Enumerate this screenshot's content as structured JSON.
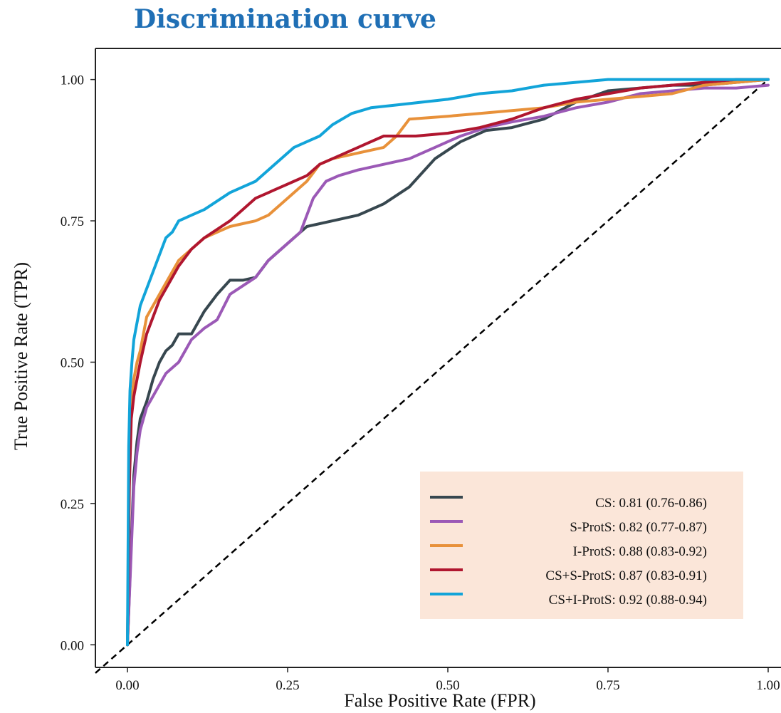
{
  "chart_data": {
    "type": "line",
    "title": "Discrimination curve",
    "xlabel": "False Positive Rate (FPR)",
    "ylabel": "True Positive Rate (TPR)",
    "xlim": [
      -0.05,
      1.02
    ],
    "ylim": [
      -0.04,
      1.055
    ],
    "x_ticks": [
      0.0,
      0.25,
      0.5,
      0.75,
      1.0
    ],
    "x_tick_labels": [
      "0.00",
      "0.25",
      "0.50",
      "0.75",
      "1.00"
    ],
    "y_ticks": [
      0.0,
      0.25,
      0.5,
      0.75,
      1.0
    ],
    "y_tick_labels": [
      "0.00",
      "0.25",
      "0.50",
      "0.75",
      "1.00"
    ],
    "grid": false,
    "legend_position": "bottom-right",
    "legend_background": "#fbe6d9",
    "reference_line": {
      "x": [
        0,
        1
      ],
      "y": [
        0,
        1
      ],
      "style": "dashed",
      "color": "#000000"
    },
    "series": [
      {
        "name": "CS: 0.81 (0.76-0.86)",
        "color": "#37474f",
        "x": [
          0,
          0.005,
          0.01,
          0.015,
          0.02,
          0.03,
          0.04,
          0.05,
          0.06,
          0.07,
          0.08,
          0.09,
          0.1,
          0.12,
          0.14,
          0.16,
          0.18,
          0.2,
          0.22,
          0.25,
          0.28,
          0.32,
          0.36,
          0.4,
          0.44,
          0.48,
          0.52,
          0.56,
          0.6,
          0.65,
          0.7,
          0.75,
          0.8,
          0.85,
          0.9,
          0.95,
          1.0
        ],
        "y": [
          0,
          0.15,
          0.3,
          0.36,
          0.4,
          0.43,
          0.47,
          0.5,
          0.52,
          0.53,
          0.55,
          0.55,
          0.55,
          0.59,
          0.62,
          0.645,
          0.645,
          0.65,
          0.68,
          0.71,
          0.74,
          0.75,
          0.76,
          0.78,
          0.81,
          0.86,
          0.89,
          0.91,
          0.915,
          0.93,
          0.96,
          0.98,
          0.985,
          0.99,
          0.99,
          0.995,
          1.0
        ]
      },
      {
        "name": "S-ProtS: 0.82 (0.77-0.87)",
        "color": "#9b59b6",
        "x": [
          0,
          0.005,
          0.01,
          0.015,
          0.02,
          0.03,
          0.04,
          0.05,
          0.06,
          0.07,
          0.08,
          0.09,
          0.1,
          0.12,
          0.14,
          0.16,
          0.18,
          0.2,
          0.22,
          0.25,
          0.27,
          0.29,
          0.31,
          0.33,
          0.36,
          0.4,
          0.44,
          0.48,
          0.52,
          0.56,
          0.6,
          0.65,
          0.7,
          0.75,
          0.8,
          0.85,
          0.9,
          0.95,
          1.0
        ],
        "y": [
          0,
          0.14,
          0.28,
          0.34,
          0.38,
          0.42,
          0.44,
          0.46,
          0.48,
          0.49,
          0.5,
          0.52,
          0.54,
          0.56,
          0.575,
          0.62,
          0.635,
          0.65,
          0.68,
          0.71,
          0.73,
          0.79,
          0.82,
          0.83,
          0.84,
          0.85,
          0.86,
          0.88,
          0.9,
          0.915,
          0.925,
          0.935,
          0.95,
          0.96,
          0.975,
          0.98,
          0.985,
          0.985,
          0.99
        ]
      },
      {
        "name": "I-ProtS: 0.88 (0.83-0.92)",
        "color": "#e8913a",
        "x": [
          0,
          0.003,
          0.006,
          0.01,
          0.015,
          0.02,
          0.025,
          0.03,
          0.04,
          0.05,
          0.06,
          0.07,
          0.08,
          0.1,
          0.12,
          0.14,
          0.16,
          0.18,
          0.2,
          0.22,
          0.24,
          0.26,
          0.28,
          0.3,
          0.32,
          0.36,
          0.4,
          0.42,
          0.44,
          0.5,
          0.55,
          0.6,
          0.65,
          0.7,
          0.75,
          0.8,
          0.85,
          0.9,
          0.95,
          1.0
        ],
        "y": [
          0,
          0.3,
          0.42,
          0.47,
          0.5,
          0.52,
          0.55,
          0.58,
          0.6,
          0.62,
          0.64,
          0.66,
          0.68,
          0.7,
          0.72,
          0.73,
          0.74,
          0.745,
          0.75,
          0.76,
          0.78,
          0.8,
          0.82,
          0.85,
          0.86,
          0.87,
          0.88,
          0.9,
          0.93,
          0.935,
          0.94,
          0.945,
          0.95,
          0.96,
          0.965,
          0.97,
          0.975,
          0.99,
          0.995,
          1.0
        ]
      },
      {
        "name": "CS+S-ProtS: 0.87 (0.83-0.91)",
        "color": "#b0162f",
        "x": [
          0,
          0.003,
          0.006,
          0.01,
          0.015,
          0.02,
          0.03,
          0.04,
          0.05,
          0.06,
          0.07,
          0.08,
          0.1,
          0.12,
          0.14,
          0.16,
          0.18,
          0.2,
          0.22,
          0.24,
          0.26,
          0.28,
          0.3,
          0.32,
          0.36,
          0.4,
          0.45,
          0.5,
          0.55,
          0.6,
          0.65,
          0.7,
          0.75,
          0.8,
          0.85,
          0.9,
          0.95,
          1.0
        ],
        "y": [
          0,
          0.28,
          0.4,
          0.44,
          0.47,
          0.5,
          0.55,
          0.58,
          0.61,
          0.63,
          0.65,
          0.67,
          0.7,
          0.72,
          0.735,
          0.75,
          0.77,
          0.79,
          0.8,
          0.81,
          0.82,
          0.83,
          0.85,
          0.86,
          0.88,
          0.9,
          0.9,
          0.905,
          0.915,
          0.93,
          0.95,
          0.965,
          0.975,
          0.985,
          0.99,
          0.995,
          1.0,
          1.0
        ]
      },
      {
        "name": "CS+I-ProtS: 0.92 (0.88-0.94)",
        "color": "#12a4d9",
        "x": [
          0,
          0.002,
          0.004,
          0.007,
          0.01,
          0.015,
          0.02,
          0.03,
          0.04,
          0.05,
          0.06,
          0.07,
          0.08,
          0.1,
          0.12,
          0.14,
          0.16,
          0.18,
          0.2,
          0.22,
          0.24,
          0.26,
          0.28,
          0.3,
          0.32,
          0.35,
          0.38,
          0.42,
          0.46,
          0.5,
          0.55,
          0.6,
          0.65,
          0.7,
          0.75,
          0.8,
          0.9,
          1.0
        ],
        "y": [
          0,
          0.35,
          0.45,
          0.5,
          0.54,
          0.57,
          0.6,
          0.63,
          0.66,
          0.69,
          0.72,
          0.73,
          0.75,
          0.76,
          0.77,
          0.785,
          0.8,
          0.81,
          0.82,
          0.84,
          0.86,
          0.88,
          0.89,
          0.9,
          0.92,
          0.94,
          0.95,
          0.955,
          0.96,
          0.965,
          0.975,
          0.98,
          0.99,
          0.995,
          1.0,
          1.0,
          1.0,
          1.0
        ]
      }
    ]
  }
}
